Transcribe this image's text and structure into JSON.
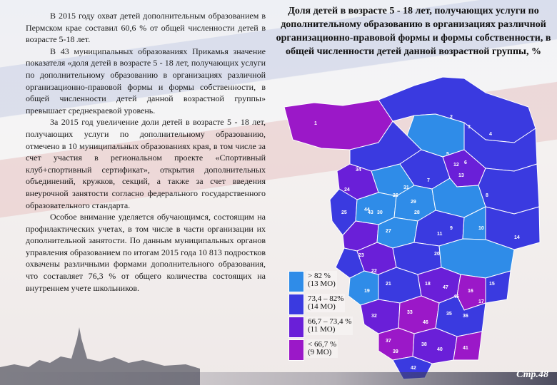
{
  "paragraphs": [
    "В 2015 году охват детей дополнительным образованием в Пермском крае составил 60,6 % от общей численности детей в возрасте 5-18 лет.",
    "В 43 муниципальных образованиях Прикамья значение показателя «доля детей в возрасте 5 - 18 лет, получающих услуги по дополнительному образованию в организациях различной организационно-правовой формы и формы собственности, в общей численности детей данной возрастной группы» превышает среднекраевой уровень.",
    "За 2015 год увеличение доли детей в возрасте 5 - 18 лет, получающих услуги по дополнительному образованию, отмечено в 10 муниципальных образованиях края, в том числе за счет участия в региональном проекте «Спортивный клуб+спортивный сертификат», открытия дополнительных объединений, кружков, секций, а также за счет введения внеурочной занятости согласно федерального государственного образовательного стандарта.",
    "Особое внимание уделяется обучающимся, состоящим на профилактических учетах, в том числе в части организации их дополнительной занятости. По данным муниципальных органов управления образованием по итогам 2015 года 10 813 подростков охвачены различными формами дополнительного образования, что составляет 76,3 % от общего количества состоящих на внутреннем учете школьников."
  ],
  "map_title": "Доля детей в возрасте 5 - 18 лет, получающих услуги по дополнительному образованию в организациях различной организационно-правовой формы и формы собственности, в общей численности детей данной возрастной группы, %",
  "legend": [
    {
      "range": "> 82 %",
      "count": "(13 МО)",
      "color": "#2f8ce8"
    },
    {
      "range": "73,4 – 82%",
      "count": "(14 МО)",
      "color": "#3a3ae0"
    },
    {
      "range": "66,7 – 73,4 %",
      "count": "(11 МО)",
      "color": "#6a1fd8"
    },
    {
      "range": "< 66,7 %",
      "count": "(9 МО)",
      "color": "#9b18c8"
    }
  ],
  "map_labels": [
    "1",
    "2",
    "3",
    "4",
    "5",
    "6",
    "7",
    "8",
    "9",
    "10",
    "11",
    "12",
    "13",
    "14",
    "15",
    "16",
    "17",
    "18",
    "19",
    "20",
    "21",
    "22",
    "23",
    "24",
    "25",
    "26",
    "27",
    "28",
    "29",
    "30",
    "31",
    "32",
    "33",
    "34",
    "35",
    "36",
    "37",
    "38",
    "39",
    "40",
    "41",
    "42",
    "43",
    "44",
    "45",
    "46",
    "47"
  ],
  "page_number": "Стр.48"
}
